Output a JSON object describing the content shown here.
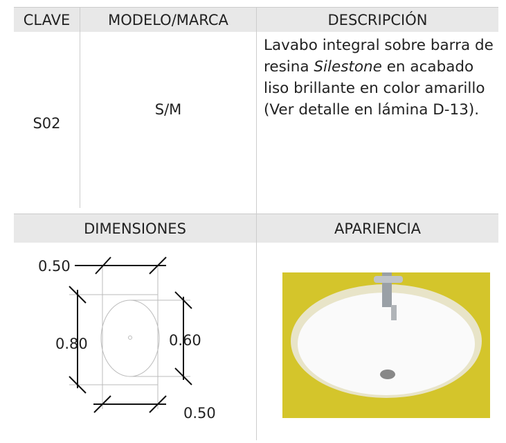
{
  "table": {
    "header": [
      "CLAVE",
      "MODELO/MARCA",
      "DESCRIPCIÓN"
    ],
    "row": {
      "clave": "S02",
      "modelo": "S/M",
      "description": [
        "Lavabo integral sobre barra de resina ",
        "Silestone",
        " en acabado liso brillante en color amarillo (Ver detalle en lámina D-13)."
      ]
    },
    "header2": [
      "DIMENSIONES",
      "APARIENCIA"
    ],
    "dimensions": {
      "top": "0.50",
      "left": "0.80",
      "right": "0.60",
      "bottom": "0.50"
    }
  }
}
